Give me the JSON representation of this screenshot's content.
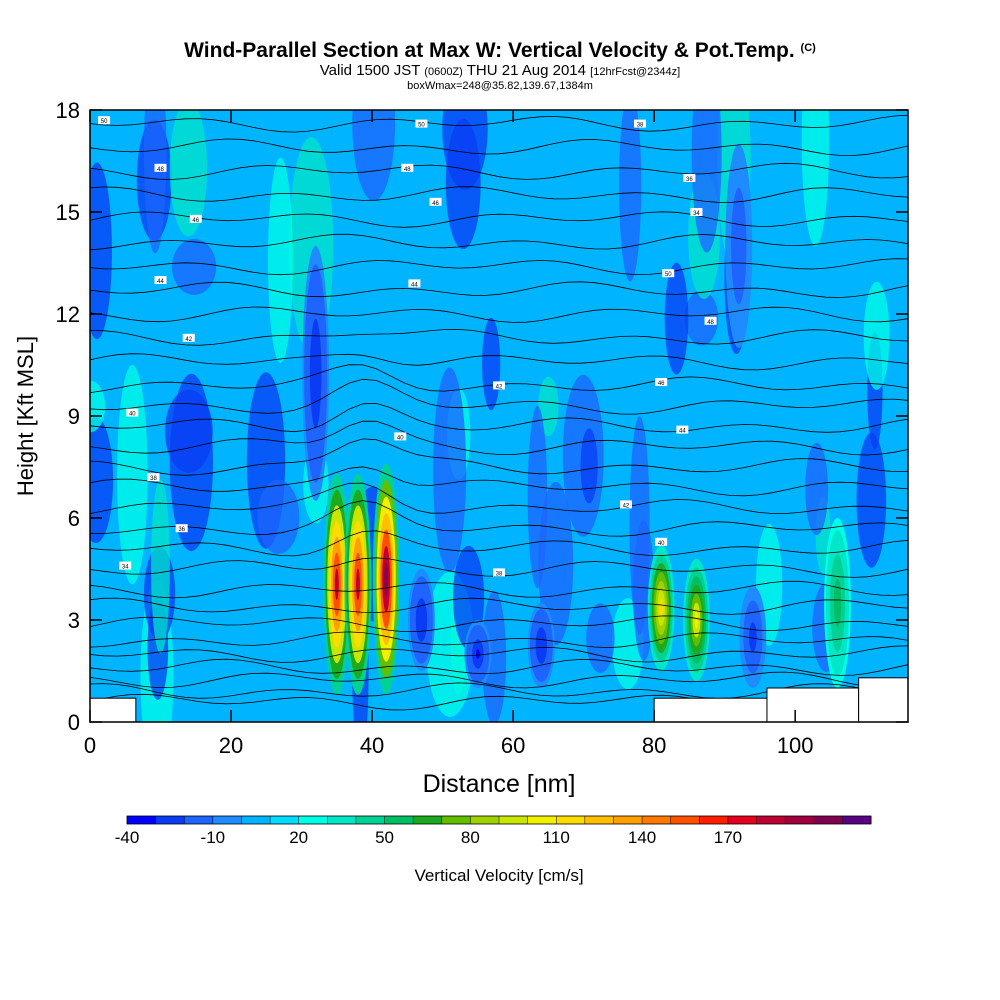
{
  "title": {
    "main": "Wind-Parallel Section at Max W: Vertical Velocity & Pot.Temp.",
    "copyright": "(C)",
    "valid_prefix": "Valid 1500 JST",
    "valid_utc": "(0600Z)",
    "valid_date": "THU 21 Aug 2014",
    "forecast": "[12hrFcst@2344z]",
    "box_info": "boxWmax=248@35.82,139.67,1384m"
  },
  "chart_data": {
    "type": "heatmap",
    "xlabel": "Distance [nm]",
    "ylabel": "Height [Kft MSL]",
    "xlim": [
      0,
      116
    ],
    "ylim": [
      0,
      18
    ],
    "xticks": [
      0,
      20,
      40,
      60,
      80,
      100
    ],
    "yticks": [
      0,
      3,
      6,
      9,
      12,
      15,
      18
    ],
    "colorbar": {
      "label": "Vertical Velocity [cm/s]",
      "tick_labels": [
        "-40",
        "-10",
        "20",
        "50",
        "80",
        "110",
        "140",
        "170"
      ],
      "tick_values": [
        -40,
        -10,
        20,
        50,
        80,
        110,
        140,
        170
      ],
      "colors": [
        "#0000ff",
        "#0a3cf5",
        "#1e64ff",
        "#1e8cff",
        "#00b4ff",
        "#00dcff",
        "#00ffe6",
        "#00e6c8",
        "#00d296",
        "#00be64",
        "#1eaa1e",
        "#64be00",
        "#a0d200",
        "#c8e600",
        "#f0f000",
        "#ffdc00",
        "#ffbe00",
        "#ffa000",
        "#ff7800",
        "#ff5000",
        "#ff1e00",
        "#e6001e",
        "#be0032",
        "#a0003c",
        "#820050",
        "#5a0082"
      ]
    },
    "contour_labels": [
      "50",
      "48",
      "46",
      "44",
      "42",
      "40",
      "38",
      "36",
      "34"
    ],
    "updraft_cores": [
      {
        "x": 35,
        "y_bottom": 0.8,
        "y_top": 7.3,
        "w_max": 150
      },
      {
        "x": 38,
        "y_bottom": 0.8,
        "y_top": 7.3,
        "w_max": 150
      },
      {
        "x": 42,
        "y_bottom": 0.8,
        "y_top": 7.6,
        "w_max": 175
      },
      {
        "x": 81,
        "y_bottom": 1.5,
        "y_top": 5.2,
        "w_max": 90
      },
      {
        "x": 86,
        "y_bottom": 1.2,
        "y_top": 4.8,
        "w_max": 80
      },
      {
        "x": 106,
        "y_bottom": 1.0,
        "y_top": 6.0,
        "w_max": 40
      }
    ],
    "downdraft_cores": [
      {
        "x": 32,
        "y_bottom": 6.5,
        "y_top": 14.0,
        "w_min": -35
      },
      {
        "x": 47,
        "y_bottom": 1.5,
        "y_top": 4.5,
        "w_min": -35
      },
      {
        "x": 55,
        "y_bottom": 1.0,
        "y_top": 3.0,
        "w_min": -38
      },
      {
        "x": 64,
        "y_bottom": 1.0,
        "y_top": 3.5,
        "w_min": -35
      },
      {
        "x": 94,
        "y_bottom": 1.0,
        "y_top": 4.0,
        "w_min": -30
      },
      {
        "x": 92,
        "y_bottom": 11.0,
        "y_top": 17.0,
        "w_min": -25
      }
    ],
    "terrain_steps": [
      {
        "x0": 0,
        "x1": 6.5,
        "height": 0.7
      },
      {
        "x0": 80,
        "x1": 96,
        "height": 0.7
      },
      {
        "x0": 96,
        "x1": 109,
        "height": 1.0
      },
      {
        "x0": 109,
        "x1": 116,
        "height": 1.3
      }
    ]
  }
}
